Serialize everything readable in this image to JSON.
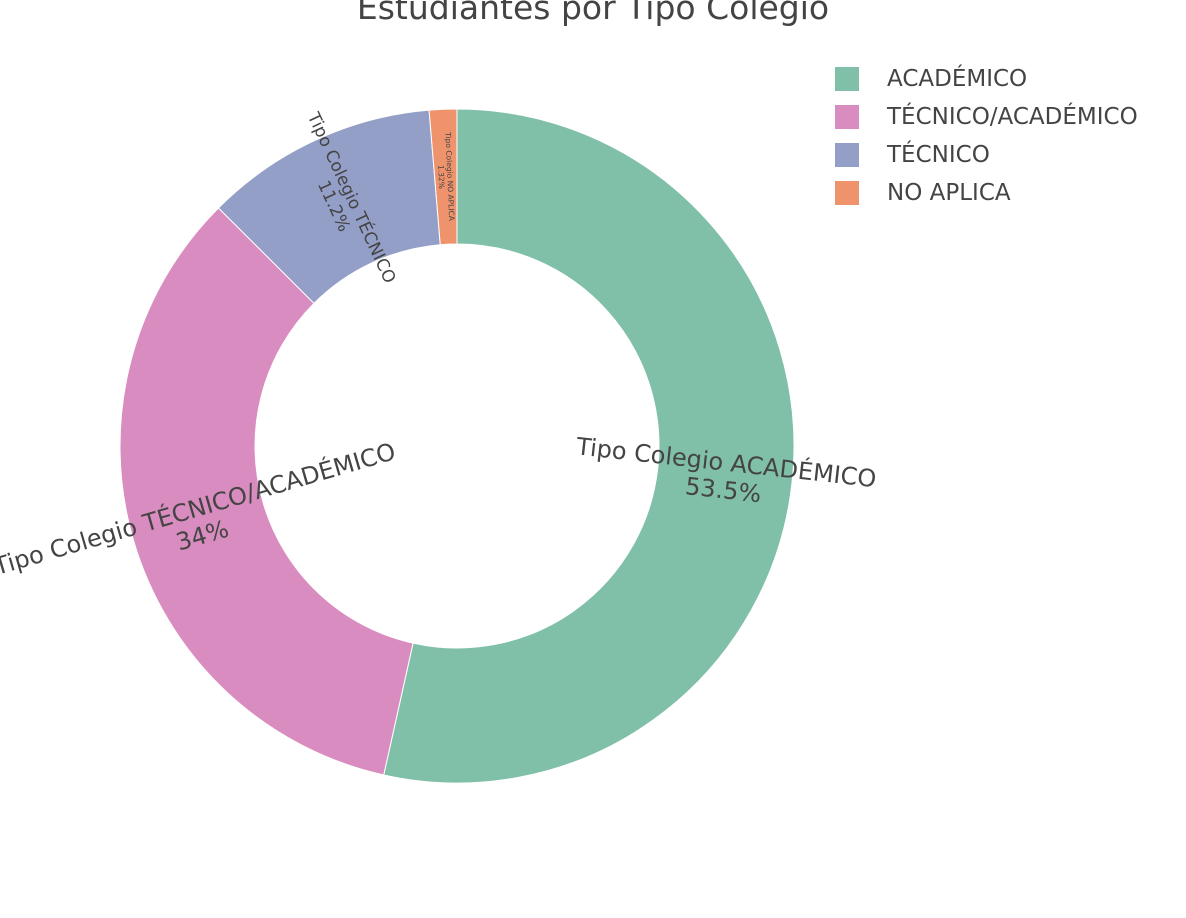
{
  "chart_data": {
    "type": "pie",
    "hole": true,
    "title": "Estudiantes por Tipo Colegio",
    "categories": [
      "ACADÉMICO",
      "TÉCNICO/ACADÉMICO",
      "TÉCNICO",
      "NO APLICA"
    ],
    "values": [
      53.5,
      34,
      11.2,
      1.32
    ],
    "slice_labels": [
      "Tipo Colegio ACADÉMICO",
      "Tipo Colegio TÉCNICO/ACADÉMICO",
      "Tipo Colegio TÉCNICO",
      "Tipo Colegio NO APLICA"
    ],
    "percent_labels": [
      "53.5%",
      "34%",
      "11.2%",
      "1.32%"
    ],
    "colors": [
      "#80bfa8",
      "#d98cbf",
      "#939fc7",
      "#ef936d"
    ],
    "legend_position": "top-right"
  }
}
